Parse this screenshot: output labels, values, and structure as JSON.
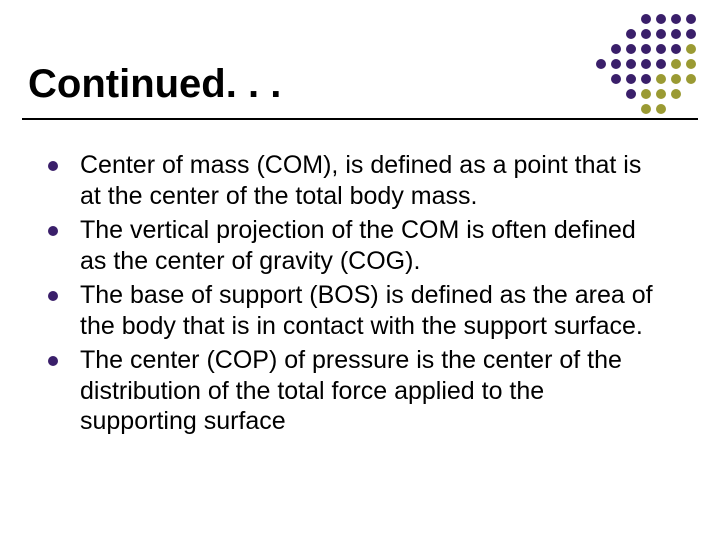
{
  "slide": {
    "title": "Continued. . .",
    "title_fontsize": 40,
    "title_color": "#000000",
    "rule_color": "#000000",
    "background_color": "#ffffff",
    "bullets": {
      "dot_color": "#3a1f6a",
      "text_color": "#000000",
      "text_fontsize": 25,
      "items": [
        "Center of mass (COM), is defined as a point that is at the center of the total body mass.",
        "The vertical projection of the COM is often defined as the center of gravity (COG).",
        "The base of support (BOS) is defined as the area of the body that is in contact with the support surface.",
        "The center (COP) of pressure is the center of the distribution of the total force applied to the supporting surface"
      ]
    }
  },
  "decoration": {
    "type": "dot-grid",
    "rows": 7,
    "cols": 7,
    "dot_size": 10,
    "gap": 3,
    "colors": {
      "purple": "#3a1f6a",
      "olive": "#9a9a33",
      "blank": "transparent"
    },
    "pattern": [
      [
        "blank",
        "blank",
        "blank",
        "purple",
        "purple",
        "purple",
        "purple"
      ],
      [
        "blank",
        "blank",
        "purple",
        "purple",
        "purple",
        "purple",
        "purple"
      ],
      [
        "blank",
        "purple",
        "purple",
        "purple",
        "purple",
        "purple",
        "olive"
      ],
      [
        "purple",
        "purple",
        "purple",
        "purple",
        "purple",
        "olive",
        "olive"
      ],
      [
        "blank",
        "purple",
        "purple",
        "purple",
        "olive",
        "olive",
        "olive"
      ],
      [
        "blank",
        "blank",
        "purple",
        "olive",
        "olive",
        "olive",
        "blank"
      ],
      [
        "blank",
        "blank",
        "blank",
        "olive",
        "olive",
        "blank",
        "blank"
      ]
    ]
  }
}
